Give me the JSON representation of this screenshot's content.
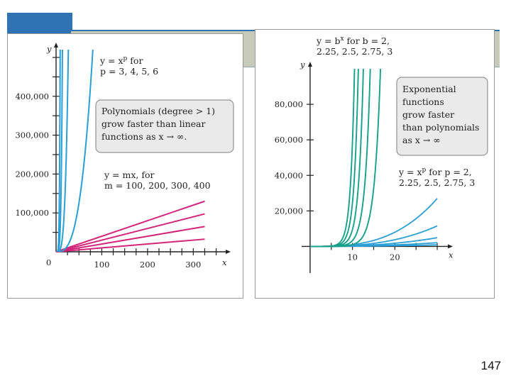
{
  "page": {
    "number": "147"
  },
  "colors": {
    "poly_blue": "#2a9fd6",
    "linear_magenta": "#d4237a",
    "exp_green": "#17a08a",
    "callout_bg": "#eaeaea",
    "callout_border": "#7f7f7f",
    "header_blue": "#2f73b5",
    "header_gray": "#c7c9b9"
  },
  "chart_data": [
    {
      "type": "line",
      "axes": {
        "x_label": "x",
        "y_label": "y",
        "xlim": [
          0,
          360
        ],
        "ylim": [
          0,
          520000
        ],
        "x_ticks": [
          {
            "value": 100,
            "label": "100"
          },
          {
            "value": 200,
            "label": "200"
          },
          {
            "value": 300,
            "label": "300"
          }
        ],
        "y_ticks": [
          {
            "value": 100000,
            "label": "100,000"
          },
          {
            "value": 200000,
            "label": "200,000"
          },
          {
            "value": 300000,
            "label": "300,000"
          },
          {
            "value": 400000,
            "label": "400,000"
          }
        ],
        "origin_label": "0",
        "grid": false
      },
      "power_series": [
        {
          "p": 3,
          "kind": "power"
        },
        {
          "p": 4,
          "kind": "power"
        },
        {
          "p": 5,
          "kind": "power"
        },
        {
          "p": 6,
          "kind": "power"
        }
      ],
      "linear_series": [
        {
          "m": 100,
          "kind": "linear"
        },
        {
          "m": 200,
          "kind": "linear"
        },
        {
          "m": 300,
          "kind": "linear"
        },
        {
          "m": 400,
          "kind": "linear"
        }
      ],
      "annotations": {
        "power_label": {
          "line1": "y = x",
          "sup": "p",
          "line1_tail": " for",
          "line2": "p = 3, 4, 5, 6"
        },
        "linear_label": {
          "line1": "y = mx, for",
          "line2": "m = 100, 200, 300, 400"
        },
        "callout": [
          "Polynomials (degree > 1)",
          "grow faster than linear",
          "functions as x → ∞."
        ]
      }
    },
    {
      "type": "line",
      "axes": {
        "x_label": "x",
        "y_label": "y",
        "xlim": [
          -2,
          32
        ],
        "ylim": [
          -15000,
          100000
        ],
        "x_ticks": [
          {
            "value": 10,
            "label": "10"
          },
          {
            "value": 20,
            "label": "20"
          }
        ],
        "y_ticks": [
          {
            "value": 20000,
            "label": "20,000"
          },
          {
            "value": 40000,
            "label": "40,000"
          },
          {
            "value": 60000,
            "label": "60,000"
          },
          {
            "value": 80000,
            "label": "80,000"
          }
        ],
        "grid": false
      },
      "exponential_series": [
        {
          "b": 2
        },
        {
          "b": 2.25
        },
        {
          "b": 2.5
        },
        {
          "b": 2.75
        },
        {
          "b": 3
        }
      ],
      "power_series": [
        {
          "p": 2
        },
        {
          "p": 2.25
        },
        {
          "p": 2.5
        },
        {
          "p": 2.75
        },
        {
          "p": 3
        }
      ],
      "annotations": {
        "exp_label": {
          "line1": "y = b",
          "sup": "x",
          "line1_tail": " for b = 2,",
          "line2": "2.25, 2.5, 2.75, 3"
        },
        "power_label": {
          "line1": "y = x",
          "sup": "p",
          "line1_tail": " for p = 2,",
          "line2": "2.25, 2.5, 2.75, 3"
        },
        "callout": [
          "Exponential",
          "functions",
          "grow faster",
          "than polynomials",
          "as x → ∞"
        ]
      }
    }
  ]
}
